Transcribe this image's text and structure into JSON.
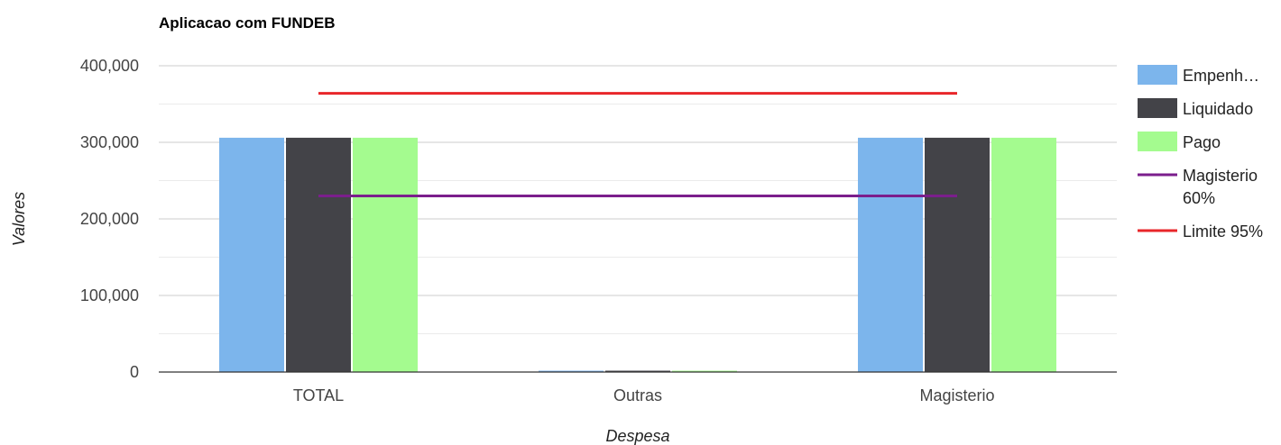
{
  "chart_data": {
    "type": "bar",
    "title": "Aplicacao com FUNDEB",
    "xlabel": "Despesa",
    "ylabel": "Valores",
    "categories": [
      "TOTAL",
      "Outras",
      "Magisterio"
    ],
    "ylim": [
      0,
      400000
    ],
    "yticks": [
      0,
      100000,
      200000,
      300000,
      400000
    ],
    "ytick_labels": [
      "0",
      "100,000",
      "200,000",
      "300,000",
      "400,000"
    ],
    "grid": true,
    "legend_position": "right",
    "series": [
      {
        "name": "Empenh…",
        "kind": "bar",
        "color": "#7cb5ec",
        "values": [
          306000,
          0,
          306000
        ]
      },
      {
        "name": "Liquidado",
        "kind": "bar",
        "color": "#434348",
        "values": [
          306000,
          0,
          306000
        ]
      },
      {
        "name": "Pago",
        "kind": "bar",
        "color": "#a4fb8f",
        "values": [
          306000,
          0,
          306000
        ]
      },
      {
        "name": "Magisterio 60%",
        "legend_lines": [
          "Magisterio",
          "60%"
        ],
        "kind": "line",
        "color": "#7b1e8c",
        "values": [
          230000,
          230000,
          230000
        ]
      },
      {
        "name": "Limite 95%",
        "legend_lines": [
          "Limite 95%"
        ],
        "kind": "line",
        "color": "#e8262a",
        "values": [
          364000,
          364000,
          364000
        ]
      }
    ]
  }
}
